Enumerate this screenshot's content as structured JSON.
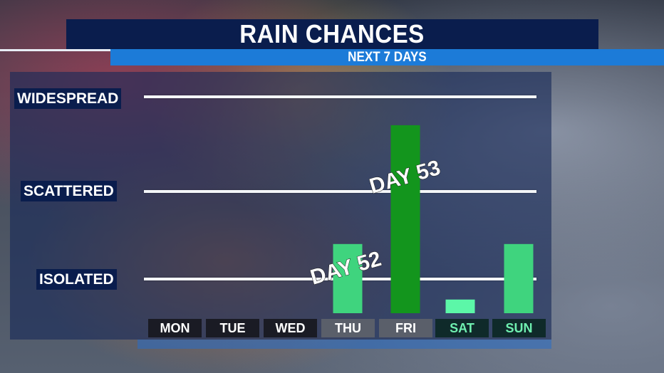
{
  "header": {
    "title": "RAIN CHANCES",
    "subtitle": "NEXT 7 DAYS"
  },
  "colors": {
    "title_bg": "#0a1d4d",
    "subtitle_bg": "#1c7bd8",
    "bar_light": "#3fd47e",
    "bar_dark": "#13951d",
    "bar_pale": "#5cf7a8"
  },
  "chart_data": {
    "type": "bar",
    "title": "RAIN CHANCES",
    "subtitle": "NEXT 7 DAYS",
    "categories": [
      "MON",
      "TUE",
      "WED",
      "THU",
      "FRI",
      "SAT",
      "SUN"
    ],
    "levels": [
      "ISOLATED",
      "SCATTERED",
      "WIDESPREAD"
    ],
    "values": [
      0,
      0,
      0,
      1.4,
      2.7,
      0.4,
      1.4
    ],
    "bar_colors": [
      null,
      null,
      null,
      "#3fd47e",
      "#13951d",
      "#5cf7a8",
      "#3fd47e"
    ],
    "annotations": [
      {
        "text": "DAY 52",
        "day": "THU"
      },
      {
        "text": "DAY 53",
        "day": "FRI"
      }
    ],
    "ylim": [
      0,
      3
    ],
    "grid": true
  }
}
